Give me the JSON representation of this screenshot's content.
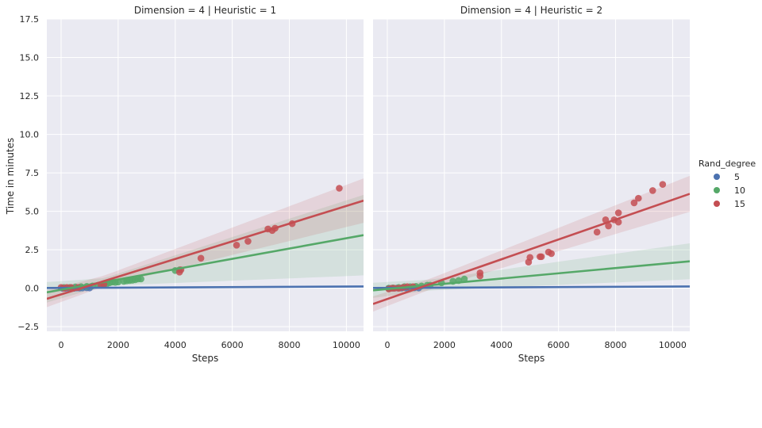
{
  "chart_data": {
    "type": "scatter",
    "xlabel": "Steps",
    "ylabel": "Time in minutes",
    "xlim": [
      -500,
      10600
    ],
    "ylim": [
      -2.8,
      17.5
    ],
    "x_ticks": [
      "0",
      "2000",
      "4000",
      "6000",
      "8000",
      "10000"
    ],
    "y_ticks": [
      "−2.5",
      "0.0",
      "2.5",
      "5.0",
      "7.5",
      "10.0",
      "12.5",
      "15.0",
      "17.5"
    ],
    "grid": true,
    "legend": {
      "title": "Rand_degree",
      "placement": "right",
      "entries": [
        {
          "label": "5",
          "color": "#4c72b0"
        },
        {
          "label": "10",
          "color": "#55a868"
        },
        {
          "label": "15",
          "color": "#c44e52"
        }
      ]
    },
    "panels": [
      {
        "title": "Dimension = 4 | Heuristic = 1",
        "series": [
          {
            "name": "5",
            "color": "#4c72b0",
            "points": [
              [
                50,
                0.0
              ],
              [
                150,
                0.0
              ],
              [
                250,
                0.02
              ],
              [
                350,
                0.01
              ],
              [
                450,
                0.0
              ],
              [
                550,
                0.02
              ],
              [
                650,
                0.01
              ],
              [
                750,
                0.02
              ],
              [
                900,
                0.03
              ],
              [
                1000,
                0.02
              ]
            ],
            "fit": {
              "slope": 9e-06,
              "intercept": 0.02
            },
            "ci": 0.06
          },
          {
            "name": "10",
            "color": "#55a868",
            "points": [
              [
                100,
                0.05
              ],
              [
                300,
                0.05
              ],
              [
                500,
                0.08
              ],
              [
                700,
                0.1
              ],
              [
                900,
                0.12
              ],
              [
                1100,
                0.15
              ],
              [
                1300,
                0.2
              ],
              [
                1500,
                0.25
              ],
              [
                1600,
                0.28
              ],
              [
                1700,
                0.35
              ],
              [
                1800,
                0.4
              ],
              [
                1900,
                0.38
              ],
              [
                2000,
                0.4
              ],
              [
                2200,
                0.45
              ],
              [
                2300,
                0.48
              ],
              [
                2400,
                0.5
              ],
              [
                2500,
                0.52
              ],
              [
                2600,
                0.55
              ],
              [
                2700,
                0.6
              ],
              [
                2800,
                0.6
              ],
              [
                4000,
                1.15
              ],
              [
                4150,
                1.2
              ]
            ],
            "fit": {
              "slope": 0.000335,
              "intercept": -0.1
            },
            "ci_center": 0.25,
            "ci_scale": 0.00026
          },
          {
            "name": "15",
            "color": "#c44e52",
            "points": [
              [
                0,
                0.05
              ],
              [
                100,
                0.0
              ],
              [
                200,
                0.05
              ],
              [
                350,
                0.05
              ],
              [
                600,
                0.05
              ],
              [
                1400,
                0.2
              ],
              [
                1500,
                0.25
              ],
              [
                4150,
                1.05
              ],
              [
                4200,
                1.2
              ],
              [
                4900,
                1.95
              ],
              [
                6150,
                2.8
              ],
              [
                6550,
                3.05
              ],
              [
                7250,
                3.85
              ],
              [
                7400,
                3.75
              ],
              [
                7500,
                3.9
              ],
              [
                8100,
                4.2
              ],
              [
                9750,
                6.5
              ]
            ],
            "fit": {
              "slope": 0.000575,
              "intercept": -0.4
            },
            "ci_center": 0.35,
            "ci_scale": 0.00012
          }
        ]
      },
      {
        "title": "Dimension = 4 | Heuristic = 2",
        "series": [
          {
            "name": "5",
            "color": "#4c72b0",
            "points": [
              [
                50,
                0.0
              ],
              [
                200,
                0.01
              ],
              [
                350,
                0.02
              ],
              [
                500,
                0.01
              ],
              [
                650,
                0.02
              ],
              [
                800,
                0.01
              ],
              [
                950,
                0.03
              ],
              [
                1100,
                0.02
              ]
            ],
            "fit": {
              "slope": 9e-06,
              "intercept": 0.02
            },
            "ci": 0.06
          },
          {
            "name": "10",
            "color": "#55a868",
            "points": [
              [
                50,
                0.0
              ],
              [
                200,
                0.02
              ],
              [
                400,
                0.05
              ],
              [
                600,
                0.1
              ],
              [
                800,
                0.1
              ],
              [
                1000,
                0.12
              ],
              [
                1200,
                0.15
              ],
              [
                1400,
                0.2
              ],
              [
                1500,
                0.2
              ],
              [
                1900,
                0.35
              ],
              [
                2300,
                0.45
              ],
              [
                2500,
                0.5
              ],
              [
                2700,
                0.6
              ]
            ],
            "fit": {
              "slope": 0.00017,
              "intercept": -0.05
            },
            "ci_center": 0.35,
            "ci_scale": 9e-05
          },
          {
            "name": "15",
            "color": "#c44e52",
            "points": [
              [
                50,
                -0.05
              ],
              [
                150,
                0.0
              ],
              [
                250,
                0.0
              ],
              [
                400,
                0.0
              ],
              [
                550,
                0.05
              ],
              [
                700,
                0.1
              ],
              [
                900,
                0.1
              ],
              [
                3250,
                0.8
              ],
              [
                3250,
                1.0
              ],
              [
                4950,
                1.7
              ],
              [
                5000,
                2.0
              ],
              [
                5350,
                2.05
              ],
              [
                5400,
                2.05
              ],
              [
                5650,
                2.35
              ],
              [
                5750,
                2.25
              ],
              [
                7350,
                3.65
              ],
              [
                7650,
                4.45
              ],
              [
                7750,
                4.05
              ],
              [
                7950,
                4.45
              ],
              [
                8100,
                4.3
              ],
              [
                8100,
                4.9
              ],
              [
                8650,
                5.55
              ],
              [
                8800,
                5.85
              ],
              [
                9300,
                6.35
              ],
              [
                9650,
                6.75
              ]
            ],
            "fit": {
              "slope": 0.000645,
              "intercept": -0.7
            },
            "ci_center": 0.35,
            "ci_scale": 9e-05
          }
        ]
      }
    ]
  }
}
